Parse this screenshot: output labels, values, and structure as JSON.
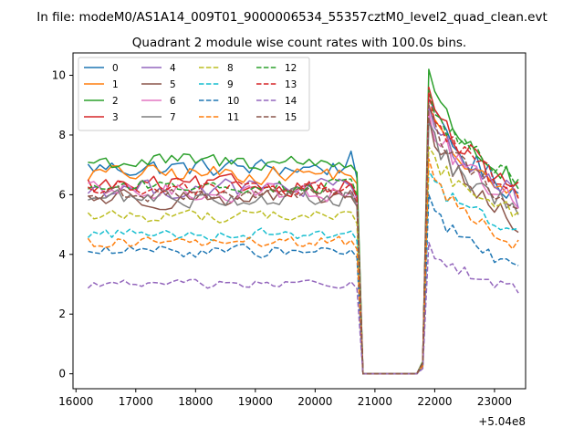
{
  "page": {
    "suptitle": "In file: modeM0/AS1A14_009T01_9000006534_55357cztM0_level2_quad_clean.evt"
  },
  "chart_data": {
    "type": "line",
    "title": "Quadrant 2 module wise count rates with 100.0s bins.",
    "xlabel": "",
    "ylabel": "",
    "x_offset_label": "+5.04e8",
    "xlim": [
      15950,
      23520
    ],
    "ylim": [
      -0.5,
      10.75
    ],
    "grid": false,
    "legend_position": "top-left",
    "legend_columns": 4,
    "xticks": [
      16000,
      17000,
      18000,
      19000,
      20000,
      21000,
      22000,
      23000
    ],
    "yticks": [
      0,
      2,
      4,
      6,
      8,
      10
    ],
    "x_start": 16200,
    "x_step": 100,
    "gap_start": 20800,
    "gap_end": 21700,
    "spike_center": 21900,
    "x_end": 23400,
    "series": [
      {
        "name": "0",
        "color": "#1f77b4",
        "dash": false,
        "level": 6.9,
        "noise": 0.32,
        "spike": 9.2,
        "end": 6.0
      },
      {
        "name": "1",
        "color": "#ff7f0e",
        "dash": false,
        "level": 6.7,
        "noise": 0.3,
        "spike": 9.0,
        "end": 5.8
      },
      {
        "name": "2",
        "color": "#2ca02c",
        "dash": false,
        "level": 7.1,
        "noise": 0.3,
        "spike": 10.2,
        "end": 6.3
      },
      {
        "name": "3",
        "color": "#d62728",
        "dash": false,
        "level": 6.3,
        "noise": 0.32,
        "spike": 9.6,
        "end": 6.1
      },
      {
        "name": "4",
        "color": "#9467bd",
        "dash": false,
        "level": 6.2,
        "noise": 0.32,
        "spike": 9.0,
        "end": 5.9
      },
      {
        "name": "5",
        "color": "#8c564b",
        "dash": false,
        "level": 5.9,
        "noise": 0.32,
        "spike": 8.6,
        "end": 5.0
      },
      {
        "name": "6",
        "color": "#e377c2",
        "dash": false,
        "level": 6.1,
        "noise": 0.32,
        "spike": 8.8,
        "end": 5.7
      },
      {
        "name": "7",
        "color": "#7f7f7f",
        "dash": false,
        "level": 5.9,
        "noise": 0.3,
        "spike": 8.4,
        "end": 5.4
      },
      {
        "name": "8",
        "color": "#bcbd22",
        "dash": true,
        "level": 5.3,
        "noise": 0.22,
        "spike": 7.6,
        "end": 5.4
      },
      {
        "name": "9",
        "color": "#17becf",
        "dash": true,
        "level": 4.7,
        "noise": 0.2,
        "spike": 6.8,
        "end": 4.8
      },
      {
        "name": "10",
        "color": "#1f77b4",
        "dash": true,
        "level": 4.1,
        "noise": 0.2,
        "spike": 6.0,
        "end": 3.5
      },
      {
        "name": "11",
        "color": "#ff7f0e",
        "dash": true,
        "level": 4.4,
        "noise": 0.2,
        "spike": 7.2,
        "end": 4.3
      },
      {
        "name": "12",
        "color": "#2ca02c",
        "dash": true,
        "level": 6.3,
        "noise": 0.25,
        "spike": 9.5,
        "end": 6.5
      },
      {
        "name": "13",
        "color": "#d62728",
        "dash": true,
        "level": 6.2,
        "noise": 0.25,
        "spike": 9.4,
        "end": 6.1
      },
      {
        "name": "14",
        "color": "#9467bd",
        "dash": true,
        "level": 3.0,
        "noise": 0.15,
        "spike": 4.4,
        "end": 2.8
      },
      {
        "name": "15",
        "color": "#8c564b",
        "dash": true,
        "level": 6.0,
        "noise": 0.25,
        "spike": 9.0,
        "end": 5.6
      }
    ]
  }
}
